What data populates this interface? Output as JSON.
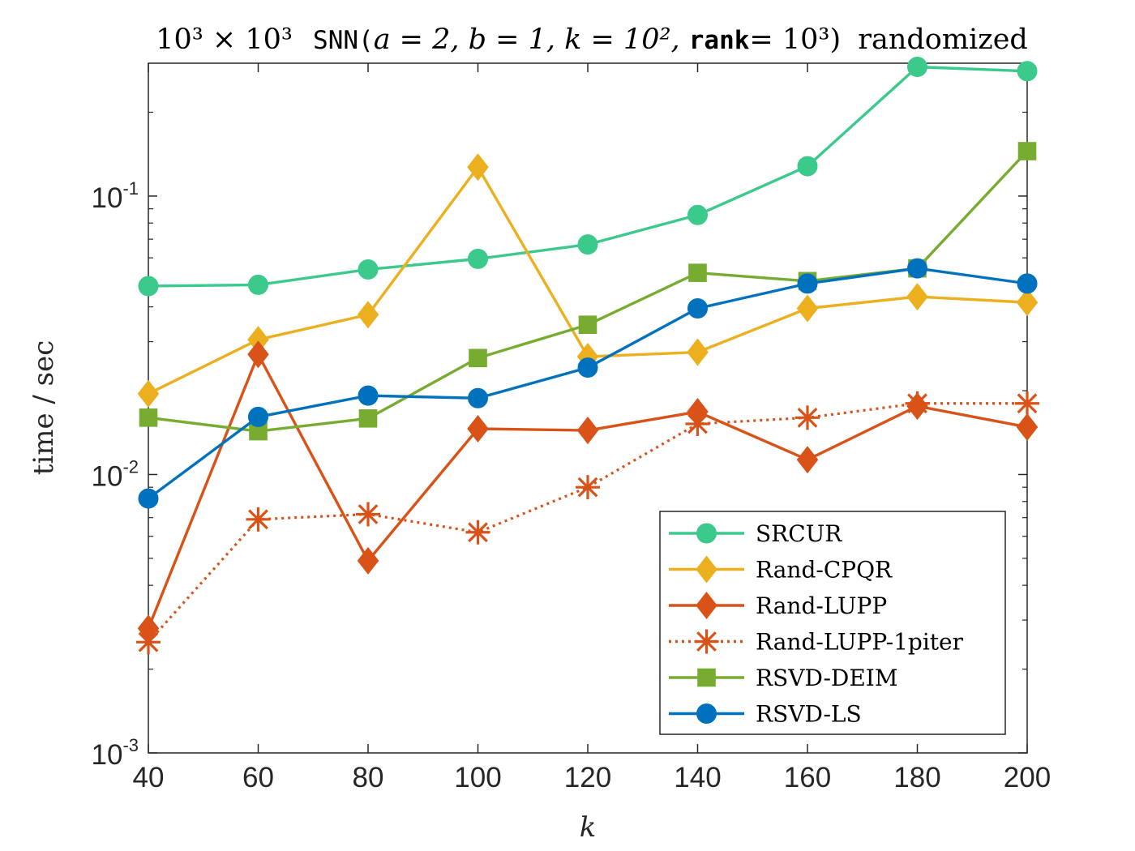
{
  "chart_data": {
    "type": "line",
    "title_parts": {
      "dims": "10³ × 10³",
      "snn": "SNN(",
      "params": "a = 2, b = 1, k = 10², ",
      "rank": "rank",
      "rank_value": "= 10³)",
      "suffix": "randomized"
    },
    "xlabel": "k",
    "ylabel": "time / sec",
    "x": [
      40,
      60,
      80,
      100,
      120,
      140,
      160,
      180,
      200
    ],
    "xlim": [
      40,
      200
    ],
    "ylim": [
      0.001,
      0.3
    ],
    "yscale": "log",
    "x_ticks": [
      "40",
      "60",
      "80",
      "100",
      "120",
      "140",
      "160",
      "180",
      "200"
    ],
    "y_ticks": [
      {
        "value": 0.001,
        "base": "10",
        "exp": "-3"
      },
      {
        "value": 0.01,
        "base": "10",
        "exp": "-2"
      },
      {
        "value": 0.1,
        "base": "10",
        "exp": "-1"
      }
    ],
    "grid": false,
    "legend_position": "lower-right",
    "series": [
      {
        "name": "SRCUR",
        "color": "#3cc98c",
        "marker": "circle",
        "dash": "solid",
        "values": [
          0.0475,
          0.048,
          0.0545,
          0.0595,
          0.067,
          0.0855,
          0.128,
          0.291,
          0.281
        ]
      },
      {
        "name": "Rand-CPQR",
        "color": "#ecb01f",
        "marker": "diamond",
        "dash": "solid",
        "values": [
          0.0195,
          0.0305,
          0.0375,
          0.127,
          0.0265,
          0.0275,
          0.0395,
          0.0435,
          0.0415
        ]
      },
      {
        "name": "Rand-LUPP",
        "color": "#d95218",
        "marker": "diamond",
        "dash": "solid",
        "values": [
          0.0028,
          0.027,
          0.0049,
          0.0146,
          0.0144,
          0.0168,
          0.0113,
          0.0176,
          0.0148
        ]
      },
      {
        "name": "Rand-LUPP-1piter",
        "color": "#d95218",
        "marker": "asterisk",
        "dash": "dotted",
        "values": [
          0.0025,
          0.0069,
          0.0072,
          0.0062,
          0.009,
          0.0152,
          0.016,
          0.018,
          0.018
        ]
      },
      {
        "name": "RSVD-DEIM",
        "color": "#77ac30",
        "marker": "square",
        "dash": "solid",
        "values": [
          0.016,
          0.0143,
          0.0159,
          0.0262,
          0.0345,
          0.053,
          0.0495,
          0.055,
          0.145
        ]
      },
      {
        "name": "RSVD-LS",
        "color": "#0072bd",
        "marker": "circle",
        "dash": "solid",
        "values": [
          0.0082,
          0.0161,
          0.0192,
          0.0188,
          0.0242,
          0.0395,
          0.0485,
          0.055,
          0.0485
        ]
      }
    ]
  }
}
